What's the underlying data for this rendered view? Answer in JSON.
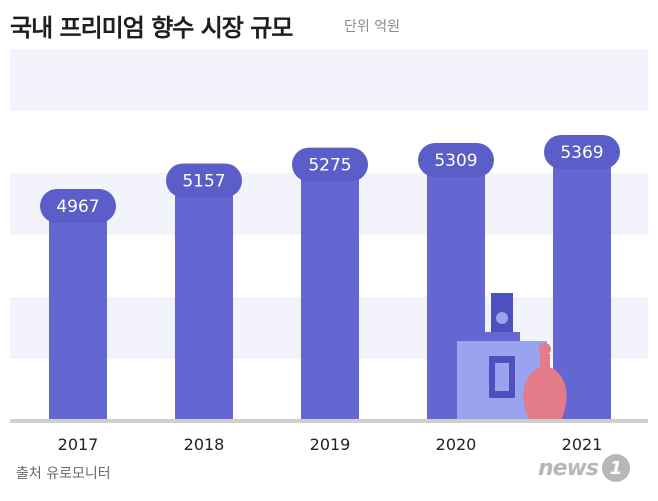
{
  "header": {
    "title": "국내 프리미엄 향수 시장 규모",
    "unit": "단위 억원"
  },
  "footer": {
    "source": "출처 유로모니터",
    "logo_text": "news",
    "logo_badge": "1"
  },
  "colors": {
    "bar": "#6466d2",
    "bar_cap": "#4d50bf",
    "label_bg": "#5b5ec8",
    "band": "#f3f3fb",
    "baseline": "#cfcfcf",
    "bottle": "#9aa3f0",
    "perfume": "#e37b89"
  },
  "chart_data": {
    "type": "bar",
    "categories": [
      "2017",
      "2018",
      "2019",
      "2020",
      "2021"
    ],
    "values": [
      4967,
      5157,
      5275,
      5309,
      5369
    ],
    "title": "국내 프리미엄 향수 시장 규모",
    "xlabel": "",
    "ylabel": "",
    "grid": "banded",
    "legend": "none"
  }
}
